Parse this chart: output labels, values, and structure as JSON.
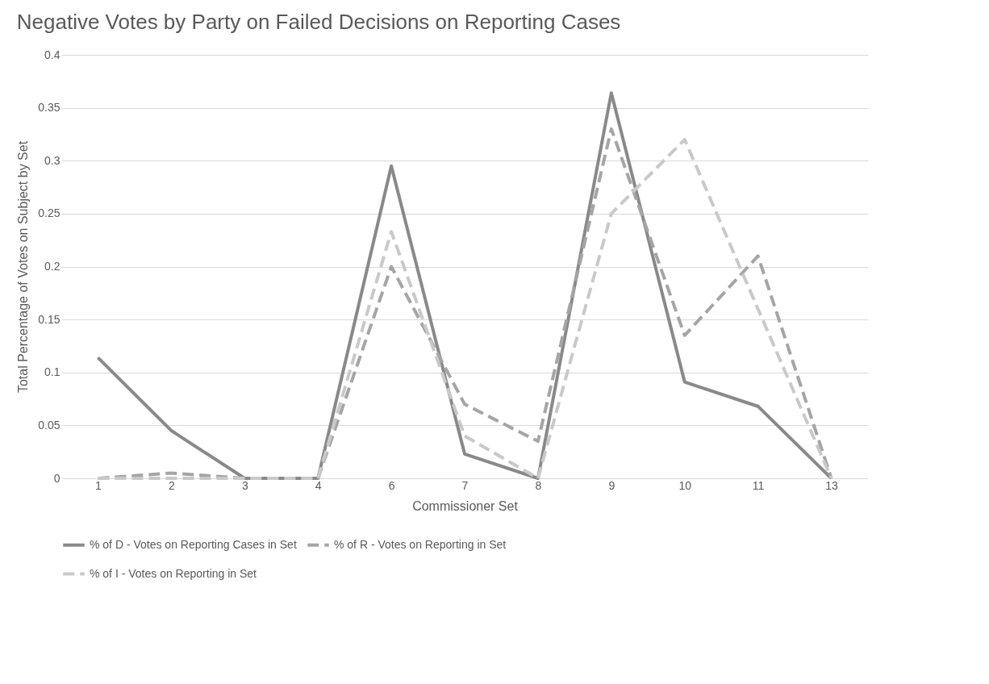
{
  "chart_data": {
    "type": "line",
    "title": "Negative Votes by Party on Failed Decisions on Reporting Cases",
    "xlabel": "Commissioner Set",
    "ylabel": "Total Percentage of Votes on Subject by Set",
    "categories": [
      "1",
      "2",
      "3",
      "4",
      "6",
      "7",
      "8",
      "9",
      "10",
      "11",
      "13"
    ],
    "series": [
      {
        "name": "% of D - Votes on Reporting Cases in Set",
        "color": "#898989",
        "line_style": "solid",
        "values": [
          0.114,
          0.045,
          0,
          0,
          0.295,
          0.023,
          0,
          0.364,
          0.091,
          0.068,
          0
        ]
      },
      {
        "name": "% of R - Votes on Reporting in Set",
        "color": "#a5a5a5",
        "line_style": "dashed",
        "values": [
          0,
          0.005,
          0,
          0,
          0.2,
          0.07,
          0.035,
          0.33,
          0.135,
          0.21,
          0
        ]
      },
      {
        "name": "% of I - Votes on Reporting in Set",
        "color": "#c9c9c9",
        "line_style": "dashed",
        "values": [
          0,
          0,
          0,
          0,
          0.233,
          0.04,
          0,
          0.25,
          0.32,
          0.16,
          0
        ]
      }
    ],
    "ylim": [
      0,
      0.4
    ],
    "yticks": [
      0,
      0.05,
      0.1,
      0.15,
      0.2,
      0.25,
      0.3,
      0.35,
      0.4
    ],
    "grid": "y",
    "legend": "bottom",
    "marker": "none"
  }
}
